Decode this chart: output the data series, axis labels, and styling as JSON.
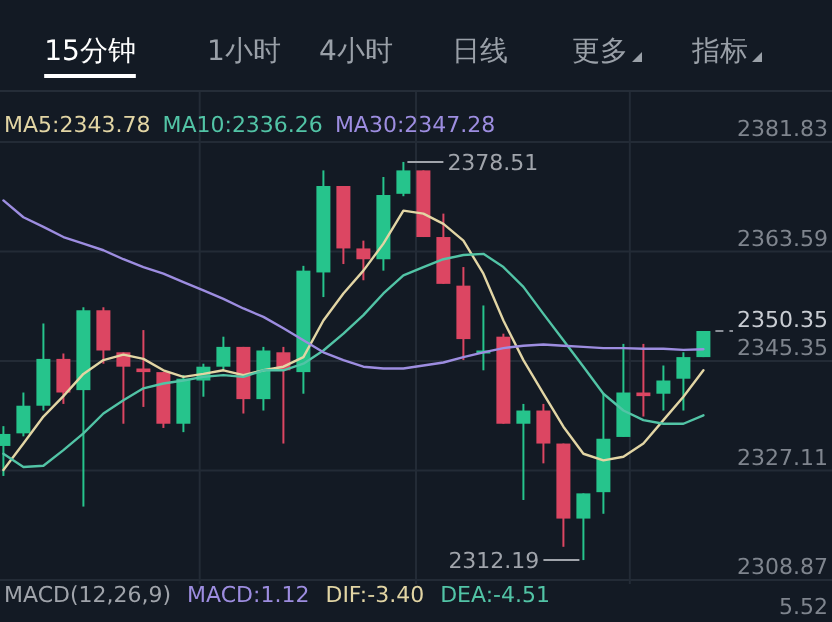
{
  "chart_data": {
    "type": "candlestick",
    "categories": [
      null,
      null,
      null,
      null,
      null,
      null,
      null,
      null,
      null,
      null,
      null,
      null,
      null,
      null,
      null,
      null,
      null,
      null,
      null,
      null,
      null,
      null,
      null,
      null,
      null,
      null,
      null,
      null,
      null,
      null,
      null,
      null,
      null,
      null,
      null,
      null
    ],
    "ohlc": [
      [
        2331.2,
        2334.5,
        2326.2,
        2333.2
      ],
      [
        2333.3,
        2340.1,
        2332.8,
        2337.9
      ],
      [
        2337.9,
        2351.6,
        2337.1,
        2345.7
      ],
      [
        2345.7,
        2346.6,
        2338.2,
        2340.1
      ],
      [
        2340.5,
        2354.3,
        2321.1,
        2353.8
      ],
      [
        2353.8,
        2354.3,
        2344.9,
        2347.1
      ],
      [
        2346.8,
        2346.8,
        2334.9,
        2344.4
      ],
      [
        2344.1,
        2350.5,
        2337.7,
        2343.5
      ],
      [
        2343.5,
        2343.5,
        2334.2,
        2334.9
      ],
      [
        2334.9,
        2343.0,
        2333.5,
        2342.4
      ],
      [
        2342.1,
        2344.9,
        2339.4,
        2344.4
      ],
      [
        2344.4,
        2349.4,
        2343.8,
        2347.7
      ],
      [
        2347.7,
        2347.7,
        2336.6,
        2339.0
      ],
      [
        2339.0,
        2347.7,
        2337.1,
        2347.1
      ],
      [
        2346.8,
        2347.7,
        2331.6,
        2343.8
      ],
      [
        2343.5,
        2361.2,
        2339.9,
        2360.4
      ],
      [
        2360.1,
        2377.1,
        2356.0,
        2374.5
      ],
      [
        2374.5,
        2374.5,
        2361.5,
        2364.1
      ],
      [
        2364.1,
        2365.4,
        2358.8,
        2362.3
      ],
      [
        2362.3,
        2376.0,
        2360.4,
        2373.0
      ],
      [
        2373.2,
        2378.51,
        2372.8,
        2377.1
      ],
      [
        2377.1,
        2377.1,
        2366.0,
        2366.0
      ],
      [
        2366.0,
        2369.9,
        2358.2,
        2358.2
      ],
      [
        2357.9,
        2361.0,
        2345.5,
        2349.0
      ],
      [
        2346.6,
        2354.6,
        2343.8,
        2347.1
      ],
      [
        2349.4,
        2349.9,
        2334.9,
        2334.9
      ],
      [
        2334.9,
        2338.2,
        2322.2,
        2337.1
      ],
      [
        2337.1,
        2338.2,
        2328.3,
        2331.6
      ],
      [
        2331.6,
        2331.6,
        2314.4,
        2319.1
      ],
      [
        2319.1,
        2323.3,
        2312.19,
        2323.3
      ],
      [
        2323.5,
        2339.9,
        2319.9,
        2332.4
      ],
      [
        2332.7,
        2348.2,
        2332.7,
        2340.1
      ],
      [
        2340.1,
        2348.2,
        2336.1,
        2339.5
      ],
      [
        2339.9,
        2344.6,
        2337.1,
        2342.1
      ],
      [
        2342.4,
        2346.8,
        2337.1,
        2346.0
      ],
      [
        2346.0,
        2350.35,
        2346.0,
        2350.35
      ]
    ],
    "colors": [
      "#26c48c",
      "#26c48c",
      "#26c48c",
      "#dc4662",
      "#26c48c",
      "#dc4662",
      "#dc4662",
      "#dc4662",
      "#dc4662",
      "#26c48c",
      "#26c48c",
      "#26c48c",
      "#dc4662",
      "#26c48c",
      "#dc4662",
      "#26c48c",
      "#26c48c",
      "#dc4662",
      "#dc4662",
      "#26c48c",
      "#26c48c",
      "#dc4662",
      "#dc4662",
      "#dc4662",
      "#26c48c",
      "#dc4662",
      "#26c48c",
      "#dc4662",
      "#dc4662",
      "#26c48c",
      "#26c48c",
      "#26c48c",
      "#dc4662",
      "#26c48c",
      "#26c48c",
      "#26c48c"
    ],
    "series": [
      {
        "name": "MA5:2343.78",
        "type": "line",
        "color": "#e2d5a4",
        "values": [
          2327.2,
          2331.6,
          2336.1,
          2339.5,
          2343.2,
          2345.5,
          2346.4,
          2345.7,
          2343.8,
          2342.7,
          2343.2,
          2343.8,
          2343.0,
          2343.8,
          2344.4,
          2346.0,
          2352.1,
          2356.6,
          2360.4,
          2364.9,
          2370.4,
          2369.9,
          2368.2,
          2365.4,
          2359.9,
          2352.1,
          2345.5,
          2339.9,
          2334.4,
          2329.9,
          2328.8,
          2329.4,
          2331.6,
          2335.5,
          2339.4,
          2343.8
        ]
      },
      {
        "name": "MA10:2336.26",
        "type": "line",
        "color": "#52c4a6",
        "values": [
          2329.9,
          2327.7,
          2327.9,
          2330.5,
          2333.3,
          2336.6,
          2338.8,
          2340.8,
          2341.6,
          2342.1,
          2342.7,
          2343.0,
          2342.7,
          2343.8,
          2343.8,
          2344.9,
          2347.1,
          2349.9,
          2353.0,
          2356.6,
          2359.6,
          2361.0,
          2362.3,
          2363.0,
          2363.2,
          2361.0,
          2357.7,
          2353.2,
          2348.8,
          2344.4,
          2339.9,
          2337.1,
          2335.5,
          2334.9,
          2334.9,
          2336.3
        ]
      },
      {
        "name": "MA30:2347.28",
        "type": "line",
        "color": "#9d8de0",
        "values": [
          2372.1,
          2369.3,
          2367.7,
          2366.0,
          2364.9,
          2363.8,
          2362.3,
          2361.0,
          2359.9,
          2358.5,
          2357.1,
          2355.7,
          2354.1,
          2352.7,
          2350.8,
          2348.8,
          2346.8,
          2345.5,
          2344.4,
          2344.1,
          2344.1,
          2344.6,
          2345.1,
          2346.0,
          2346.8,
          2347.5,
          2347.9,
          2348.1,
          2347.9,
          2347.7,
          2347.5,
          2347.5,
          2347.4,
          2347.4,
          2347.2,
          2347.3
        ]
      }
    ],
    "ylim": [
      2308.87,
      2381.83
    ],
    "yticks": [
      2381.83,
      2363.59,
      2345.35,
      2327.11,
      2308.87
    ],
    "tick_labels": "y",
    "grid": true,
    "legend": "top",
    "ref_lines": [
      {
        "axis": "y",
        "value": 2350.35,
        "label": "2350.35",
        "line_style": "dashed",
        "color": "#8a8f98"
      }
    ],
    "annotations": [
      "2378.51",
      "2312.19",
      "15分钟",
      "1小时",
      "4小时",
      "日线",
      "更多",
      "指标",
      "MACD(12,26,9)",
      "MACD:1.12",
      "DIF:-3.40",
      "DEA:-4.51",
      "5.52"
    ]
  }
}
